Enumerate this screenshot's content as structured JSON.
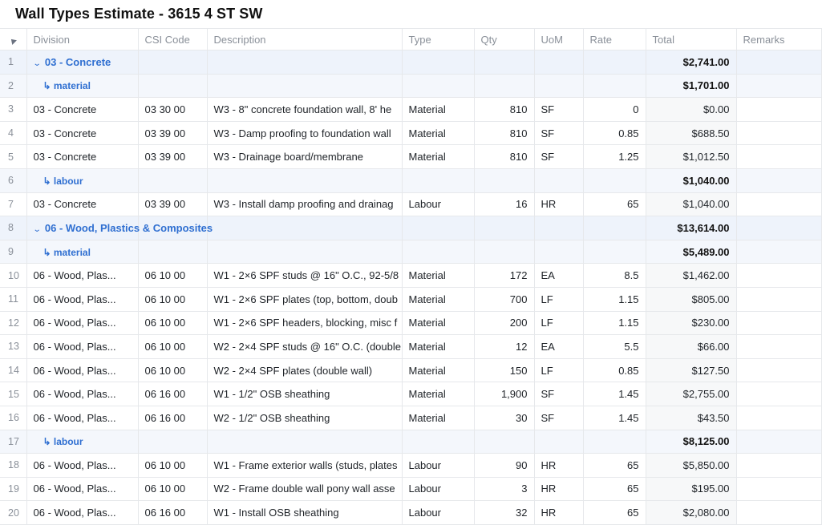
{
  "title": "Wall Types Estimate - 3615 4 ST SW",
  "columns": [
    "Division",
    "CSI Code",
    "Description",
    "Type",
    "Qty",
    "UoM",
    "Rate",
    "Total",
    "Remarks"
  ],
  "rows": [
    {
      "n": "1",
      "kind": "group",
      "label": "03 - Concrete",
      "total": "$2,741.00"
    },
    {
      "n": "2",
      "kind": "sub",
      "label": "↳ material",
      "total": "$1,701.00"
    },
    {
      "n": "3",
      "kind": "item",
      "division": "03 - Concrete",
      "csi": "03 30 00",
      "desc": "W3 - 8\" concrete foundation wall, 8' he",
      "type": "Material",
      "qty": "810",
      "uom": "SF",
      "rate": "0",
      "total": "$0.00"
    },
    {
      "n": "4",
      "kind": "item",
      "division": "03 - Concrete",
      "csi": "03 39 00",
      "desc": "W3 - Damp proofing to foundation wall",
      "type": "Material",
      "qty": "810",
      "uom": "SF",
      "rate": "0.85",
      "total": "$688.50"
    },
    {
      "n": "5",
      "kind": "item",
      "division": "03 - Concrete",
      "csi": "03 39 00",
      "desc": "W3 - Drainage board/membrane",
      "type": "Material",
      "qty": "810",
      "uom": "SF",
      "rate": "1.25",
      "total": "$1,012.50"
    },
    {
      "n": "6",
      "kind": "sub",
      "label": "↳ labour",
      "total": "$1,040.00"
    },
    {
      "n": "7",
      "kind": "item",
      "division": "03 - Concrete",
      "csi": "03 39 00",
      "desc": "W3 - Install damp proofing and drainag",
      "type": "Labour",
      "qty": "16",
      "uom": "HR",
      "rate": "65",
      "total": "$1,040.00"
    },
    {
      "n": "8",
      "kind": "group",
      "label": "06 - Wood, Plastics & Composites",
      "total": "$13,614.00"
    },
    {
      "n": "9",
      "kind": "sub",
      "label": "↳ material",
      "total": "$5,489.00"
    },
    {
      "n": "10",
      "kind": "item",
      "division": "06 - Wood, Plas...",
      "csi": "06 10 00",
      "desc": "W1 - 2×6 SPF studs @ 16\" O.C., 92-5/8",
      "type": "Material",
      "qty": "172",
      "uom": "EA",
      "rate": "8.5",
      "total": "$1,462.00"
    },
    {
      "n": "11",
      "kind": "item",
      "division": "06 - Wood, Plas...",
      "csi": "06 10 00",
      "desc": "W1 - 2×6 SPF plates (top, bottom, doub",
      "type": "Material",
      "qty": "700",
      "uom": "LF",
      "rate": "1.15",
      "total": "$805.00"
    },
    {
      "n": "12",
      "kind": "item",
      "division": "06 - Wood, Plas...",
      "csi": "06 10 00",
      "desc": "W1 - 2×6 SPF headers, blocking, misc f",
      "type": "Material",
      "qty": "200",
      "uom": "LF",
      "rate": "1.15",
      "total": "$230.00"
    },
    {
      "n": "13",
      "kind": "item",
      "division": "06 - Wood, Plas...",
      "csi": "06 10 00",
      "desc": "W2 - 2×4 SPF studs @ 16\" O.C. (double",
      "type": "Material",
      "qty": "12",
      "uom": "EA",
      "rate": "5.5",
      "total": "$66.00"
    },
    {
      "n": "14",
      "kind": "item",
      "division": "06 - Wood, Plas...",
      "csi": "06 10 00",
      "desc": "W2 - 2×4 SPF plates (double wall)",
      "type": "Material",
      "qty": "150",
      "uom": "LF",
      "rate": "0.85",
      "total": "$127.50"
    },
    {
      "n": "15",
      "kind": "item",
      "division": "06 - Wood, Plas...",
      "csi": "06 16 00",
      "desc": "W1 - 1/2\" OSB sheathing",
      "type": "Material",
      "qty": "1,900",
      "uom": "SF",
      "rate": "1.45",
      "total": "$2,755.00"
    },
    {
      "n": "16",
      "kind": "item",
      "division": "06 - Wood, Plas...",
      "csi": "06 16 00",
      "desc": "W2 - 1/2\" OSB sheathing",
      "type": "Material",
      "qty": "30",
      "uom": "SF",
      "rate": "1.45",
      "total": "$43.50"
    },
    {
      "n": "17",
      "kind": "sub",
      "label": "↳ labour",
      "total": "$8,125.00"
    },
    {
      "n": "18",
      "kind": "item",
      "division": "06 - Wood, Plas...",
      "csi": "06 10 00",
      "desc": "W1 - Frame exterior walls (studs, plates",
      "type": "Labour",
      "qty": "90",
      "uom": "HR",
      "rate": "65",
      "total": "$5,850.00"
    },
    {
      "n": "19",
      "kind": "item",
      "division": "06 - Wood, Plas...",
      "csi": "06 10 00",
      "desc": "W2 - Frame double wall pony wall asse",
      "type": "Labour",
      "qty": "3",
      "uom": "HR",
      "rate": "65",
      "total": "$195.00"
    },
    {
      "n": "20",
      "kind": "item",
      "division": "06 - Wood, Plas...",
      "csi": "06 16 00",
      "desc": "W1 - Install OSB sheathing",
      "type": "Labour",
      "qty": "32",
      "uom": "HR",
      "rate": "65",
      "total": "$2,080.00"
    }
  ]
}
